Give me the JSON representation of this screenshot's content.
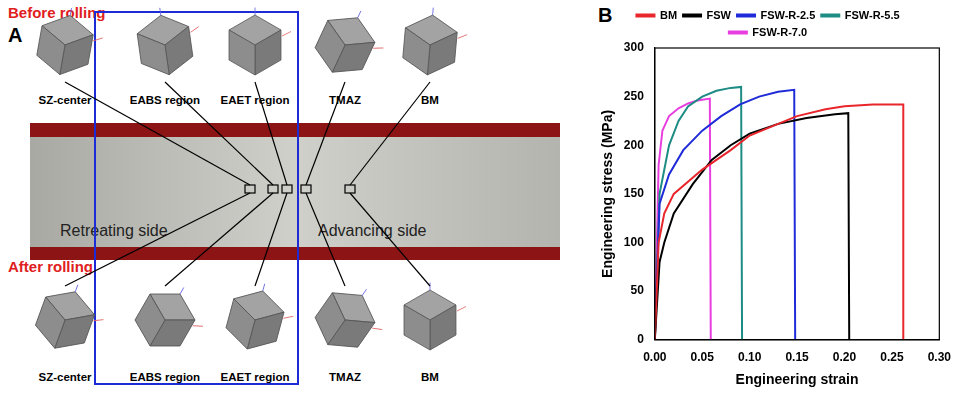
{
  "panel_a": {
    "label": "A",
    "before": "Before rolling",
    "after": "After rolling",
    "regions": [
      "SZ-center",
      "EABS region",
      "EAET region",
      "TMAZ",
      "BM"
    ],
    "sides": [
      "Retreating side",
      "Advancing side"
    ]
  },
  "chart_data": {
    "label": "B",
    "type": "line",
    "x_label": "Engineering strain",
    "y_label": "Engineering stress (MPa)",
    "xlim": [
      0,
      0.3
    ],
    "xticks": [
      {
        "value": 0,
        "label": "0.00"
      },
      {
        "value": 0.05,
        "label": "0.05"
      },
      {
        "value": 0.1,
        "label": "0.10"
      },
      {
        "value": 0.15,
        "label": "0.15"
      },
      {
        "value": 0.2,
        "label": "0.20"
      },
      {
        "value": 0.25,
        "label": "0.25"
      },
      {
        "value": 0.3,
        "label": "0.30"
      }
    ],
    "ylim": [
      0,
      300
    ],
    "yticks": [
      0,
      50,
      100,
      150,
      200,
      250,
      300
    ],
    "grid": false,
    "legend": "top",
    "series": [
      {
        "name": "BM",
        "color": "#e8262b",
        "x": [
          0,
          0.004,
          0.01,
          0.02,
          0.05,
          0.08,
          0.1,
          0.13,
          0.15,
          0.18,
          0.2,
          0.23,
          0.262,
          0.262
        ],
        "values": [
          0,
          100,
          130,
          150,
          175,
          195,
          210,
          222,
          230,
          237,
          240,
          242,
          242,
          0
        ]
      },
      {
        "name": "FSW",
        "color": "#000000",
        "x": [
          0,
          0.005,
          0.01,
          0.02,
          0.04,
          0.06,
          0.08,
          0.1,
          0.13,
          0.16,
          0.19,
          0.204,
          0.205
        ],
        "values": [
          0,
          80,
          100,
          130,
          160,
          185,
          200,
          212,
          222,
          228,
          232,
          233,
          0
        ]
      },
      {
        "name": "FSW-R-2.5",
        "color": "#1f2bd8",
        "x": [
          0,
          0.005,
          0.015,
          0.03,
          0.05,
          0.07,
          0.09,
          0.11,
          0.13,
          0.147,
          0.148
        ],
        "values": [
          0,
          140,
          170,
          195,
          215,
          230,
          242,
          250,
          255,
          257,
          0
        ]
      },
      {
        "name": "FSW-R-5.5",
        "color": "#1d8c84",
        "x": [
          0,
          0.005,
          0.015,
          0.025,
          0.035,
          0.05,
          0.065,
          0.08,
          0.091,
          0.092
        ],
        "values": [
          0,
          150,
          200,
          225,
          240,
          250,
          256,
          259,
          260,
          0
        ]
      },
      {
        "name": "FSW-R-7.0",
        "color": "#e83ee0",
        "x": [
          0,
          0.004,
          0.008,
          0.015,
          0.025,
          0.035,
          0.045,
          0.058,
          0.059
        ],
        "values": [
          0,
          180,
          215,
          230,
          238,
          243,
          246,
          248,
          0
        ]
      }
    ]
  }
}
